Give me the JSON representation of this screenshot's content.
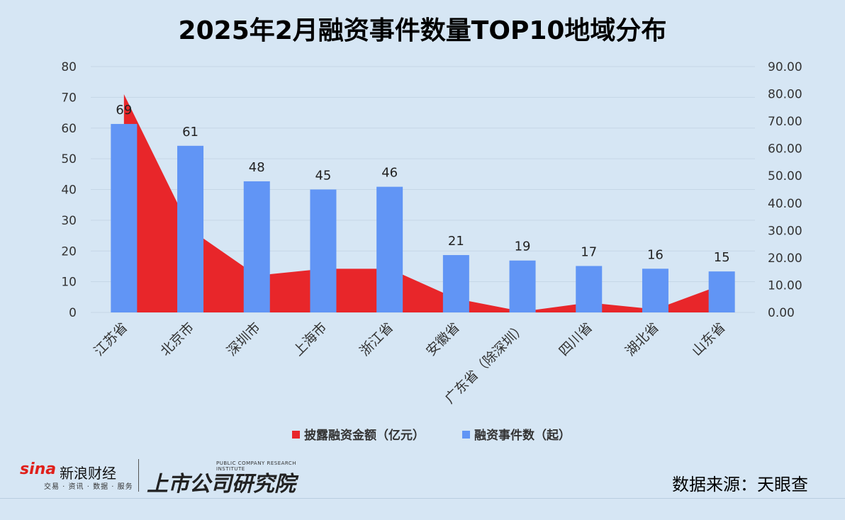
{
  "title": "2025年2月融资事件数量TOP10地域分布",
  "source": "数据来源：天眼查",
  "branding": {
    "sina_brand": "sina",
    "sina_cn": "新浪财经",
    "sina_tagline": "交易 · 资讯 · 数据 · 服务",
    "institute_en": "PUBLIC COMPANY RESEARCH INSTITUTE",
    "institute_cn": "上市公司研究院"
  },
  "colors": {
    "area": "#e8262a",
    "bar": "#6195f5",
    "background": "#d6e6f4",
    "grid": "#c5d6e6"
  },
  "chart_data": {
    "type": "bar",
    "categories": [
      "江苏省",
      "北京市",
      "深圳市",
      "上海市",
      "浙江省",
      "安徽省",
      "广东省（除深圳）",
      "四川省",
      "湖北省",
      "山东省"
    ],
    "series": [
      {
        "name": "披露融资金额（亿元）",
        "type": "area",
        "axis": "left",
        "values": [
          71,
          27,
          12,
          14.2,
          14.2,
          4.5,
          0.3,
          3.2,
          1,
          9
        ]
      },
      {
        "name": "融资事件数（起）",
        "type": "bar",
        "axis": "right",
        "values": [
          69,
          61,
          48,
          45,
          46,
          21,
          19,
          17,
          16,
          15
        ],
        "labels": [
          "69",
          "61",
          "48",
          "45",
          "46",
          "21",
          "19",
          "17",
          "16",
          "15"
        ]
      }
    ],
    "left_axis": {
      "min": 0,
      "max": 80,
      "ticks": [
        "0",
        "10",
        "20",
        "30",
        "40",
        "50",
        "60",
        "70",
        "80"
      ]
    },
    "right_axis": {
      "min": 0,
      "max": 90,
      "ticks": [
        "0.00",
        "10.00",
        "20.00",
        "30.00",
        "40.00",
        "50.00",
        "60.00",
        "70.00",
        "80.00",
        "90.00"
      ]
    },
    "grid": true,
    "legend_position": "bottom"
  }
}
